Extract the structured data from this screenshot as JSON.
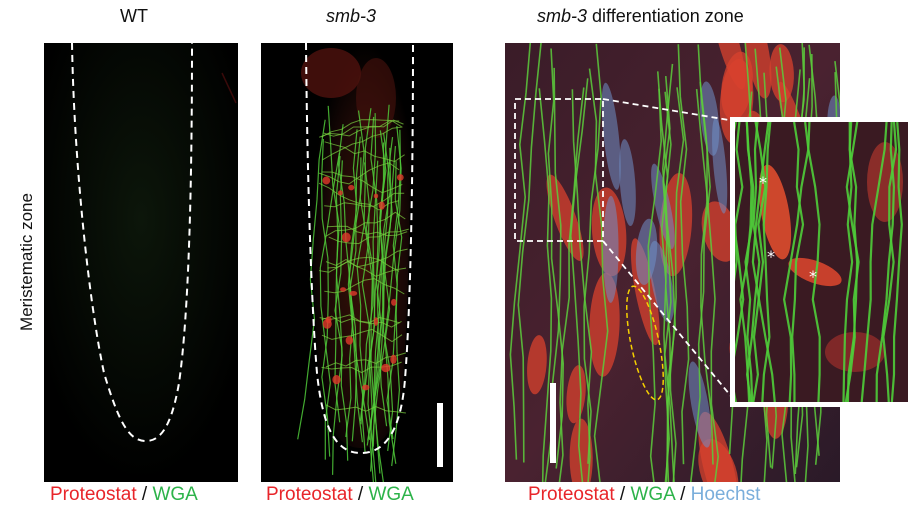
{
  "panels": [
    {
      "title": "WT",
      "caption": {
        "red": "Proteostat",
        "sep": " / ",
        "green": "WGA"
      }
    },
    {
      "title": "smb-3",
      "caption": {
        "red": "Proteostat",
        "sep": " / ",
        "green": "WGA"
      }
    },
    {
      "title_italic": "smb-3",
      "title_rest": " differentiation zone",
      "caption": {
        "red": "Proteostat",
        "sep1": " / ",
        "green": "WGA",
        "sep2": " / ",
        "blue": "Hoechst"
      }
    }
  ],
  "row_label": "Meristematic zone",
  "annotations": {
    "asterisk": "*"
  },
  "colors": {
    "proteostat": "#e8252a",
    "wga": "#2db34a",
    "hoechst": "#7aaedb"
  }
}
